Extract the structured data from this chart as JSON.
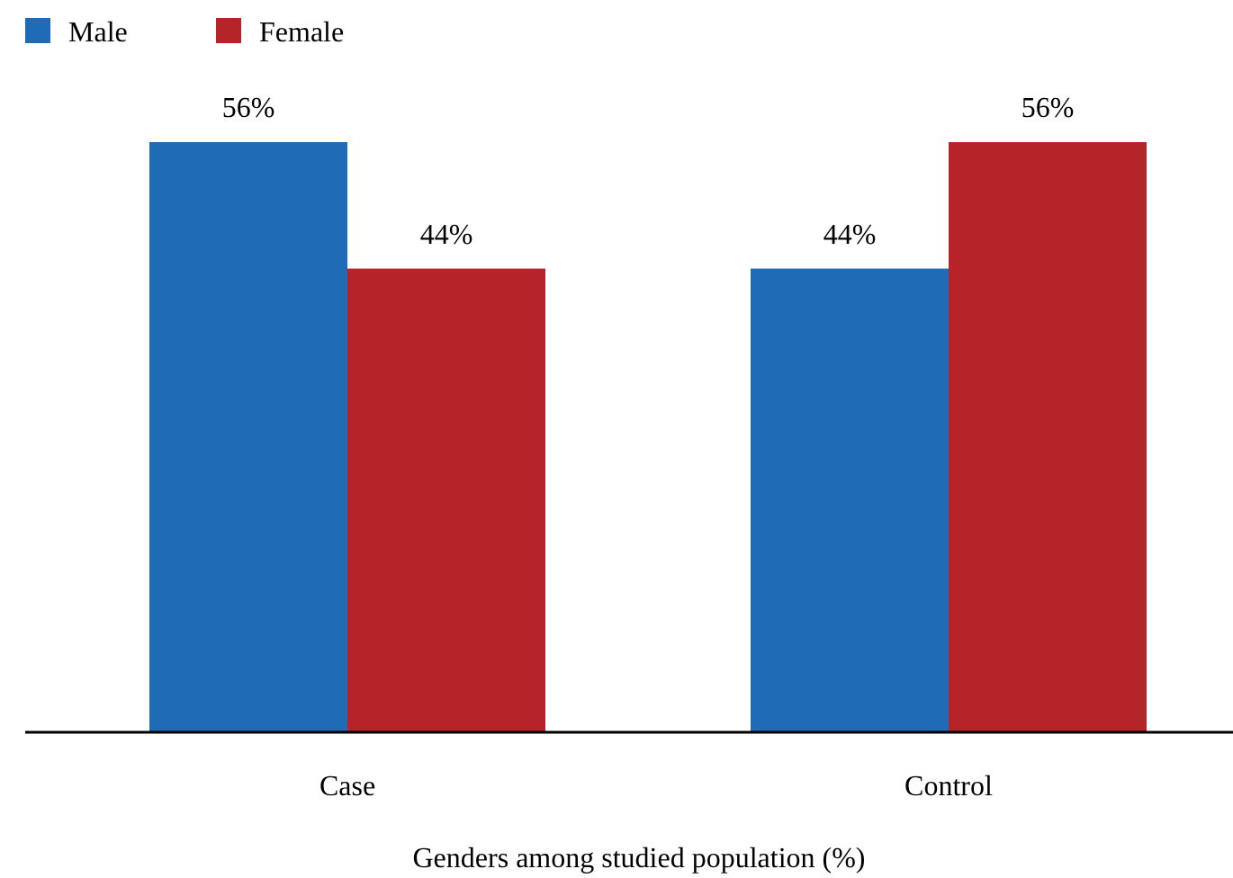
{
  "chart_data": {
    "type": "bar",
    "xlabel": "Genders among studied population (%)",
    "categories": [
      "Case",
      "Control"
    ],
    "series": [
      {
        "name": "Male",
        "color": "#1f6bb5",
        "values": [
          56,
          44
        ],
        "value_labels": [
          "56%",
          "44%"
        ]
      },
      {
        "name": "Female",
        "color": "#b52428",
        "values": [
          44,
          56
        ],
        "value_labels": [
          "44%",
          "56%"
        ]
      }
    ],
    "legend": "top left"
  }
}
